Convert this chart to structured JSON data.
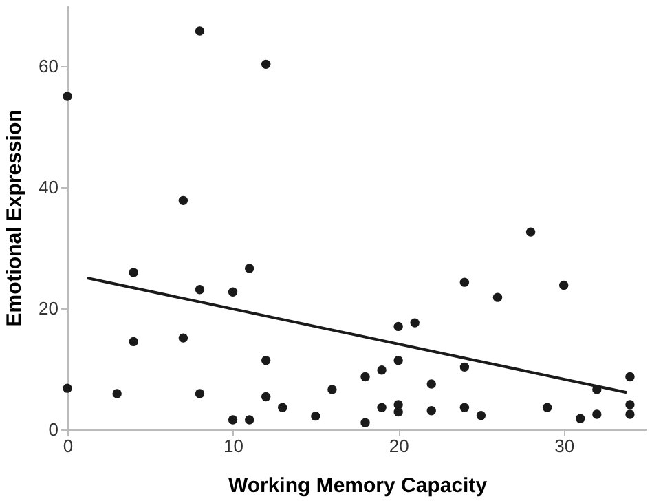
{
  "chart_data": {
    "type": "scatter",
    "xlabel": "Working Memory Capacity",
    "ylabel": "Emotional Expression",
    "xlim": [
      0,
      35
    ],
    "ylim": [
      0,
      70
    ],
    "xticks": [
      0,
      10,
      20,
      30
    ],
    "yticks": [
      0,
      20,
      40,
      60
    ],
    "grid": false,
    "marker": "circle",
    "series": [
      {
        "color": "#1a1a1a",
        "x": [
          0,
          8,
          12,
          7,
          4,
          11,
          8,
          10,
          4,
          7,
          12,
          0,
          3,
          8,
          12,
          13,
          10,
          11,
          15,
          28,
          24,
          30,
          26,
          20,
          21,
          20,
          24,
          19,
          18,
          16,
          22,
          34,
          32,
          19,
          20,
          20,
          22,
          24,
          25,
          29,
          31,
          32,
          34,
          34,
          18
        ],
        "values": [
          55,
          65.8,
          60.3,
          37.8,
          25.9,
          26.6,
          23.1,
          22.7,
          14.5,
          15.1,
          11.4,
          6.8,
          5.9,
          5.9,
          5.4,
          3.6,
          1.6,
          1.6,
          2.2,
          32.6,
          24.3,
          23.8,
          21.8,
          17,
          17.6,
          11.4,
          10.3,
          9.8,
          8.7,
          6.6,
          7.5,
          8.7,
          6.6,
          3.6,
          4.1,
          2.9,
          3.1,
          3.6,
          2.3,
          3.6,
          1.8,
          2.5,
          4.1,
          2.5,
          1.1
        ]
      },
      {
        "type": "line",
        "marker": "none",
        "color": "#1a1a1a",
        "x": [
          1.2,
          33.8
        ],
        "values": [
          25.0,
          6.1
        ]
      }
    ]
  }
}
